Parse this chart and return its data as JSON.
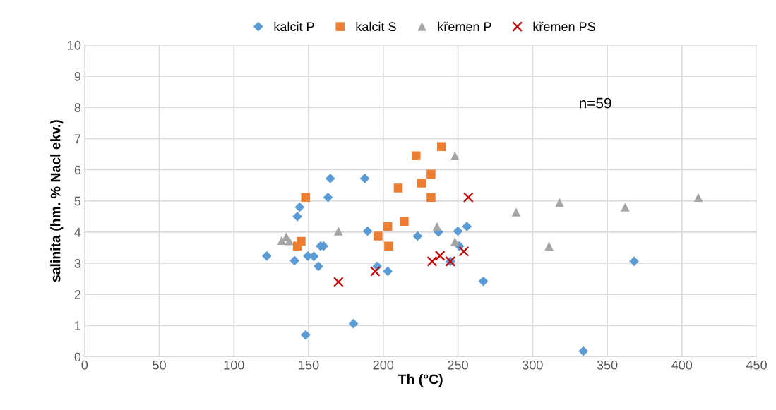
{
  "chart_data": {
    "type": "scatter",
    "xlabel": "Th (°C)",
    "ylabel": "salinita (hm. % Nacl ekv.)",
    "xlim": [
      0,
      450
    ],
    "xticks": [
      0,
      50,
      100,
      150,
      200,
      250,
      300,
      350,
      400,
      450
    ],
    "ylim": [
      0,
      10
    ],
    "yticks": [
      0,
      1,
      2,
      3,
      4,
      5,
      6,
      7,
      8,
      9,
      10
    ],
    "grid": true,
    "legend": "top",
    "annotations": [
      "n=59"
    ],
    "series": [
      {
        "name": "kalcit P",
        "color": "#5b9bd5",
        "marker": "diamond",
        "x": [
          122,
          140.6,
          142.5,
          144,
          148,
          149.5,
          153.5,
          156.6,
          158,
          160,
          163,
          164.5,
          180,
          187.6,
          189.5,
          196,
          203,
          223,
          237,
          245,
          250,
          251,
          256,
          267,
          334,
          368
        ],
        "values": [
          3.23,
          3.08,
          4.5,
          4.8,
          0.7,
          3.23,
          3.22,
          2.9,
          3.55,
          3.55,
          5.11,
          5.72,
          1.06,
          5.72,
          4.03,
          2.9,
          2.74,
          3.87,
          4.0,
          3.06,
          4.03,
          3.55,
          4.18,
          2.42,
          0.18,
          3.06
        ]
      },
      {
        "name": "kalcit S",
        "color": "#ed7d31",
        "marker": "square",
        "x": [
          148,
          145,
          142.5,
          196.5,
          203,
          203.6,
          214,
          210,
          222,
          239,
          232,
          225.7,
          232
        ],
        "values": [
          5.11,
          3.7,
          3.55,
          3.87,
          4.18,
          3.55,
          4.34,
          5.41,
          6.45,
          6.74,
          5.86,
          5.57,
          5.11
        ]
      },
      {
        "name": "křemen P",
        "color": "#a5a5a5",
        "marker": "triangle",
        "x": [
          132,
          135,
          137,
          170,
          236,
          248,
          248,
          289,
          311,
          318,
          362,
          411
        ],
        "values": [
          3.73,
          3.85,
          3.72,
          4.03,
          4.18,
          3.69,
          6.45,
          4.64,
          3.55,
          4.95,
          4.8,
          5.11
        ]
      },
      {
        "name": "křemen PS",
        "color": "#c00000",
        "marker": "cross",
        "x": [
          170,
          194.6,
          232.7,
          238,
          245,
          254,
          257
        ],
        "values": [
          2.4,
          2.74,
          3.06,
          3.24,
          3.06,
          3.38,
          5.11
        ]
      }
    ]
  }
}
